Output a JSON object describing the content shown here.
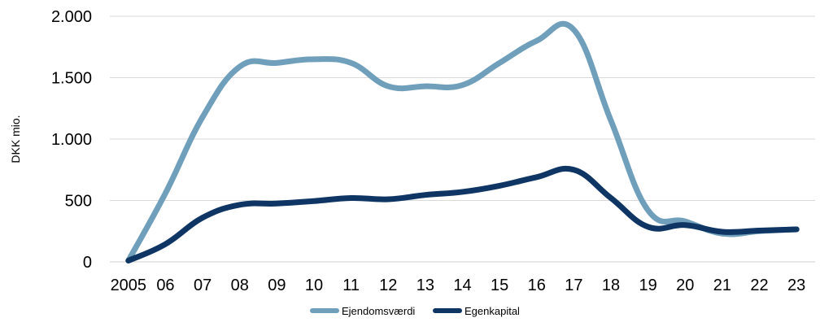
{
  "chart_data": {
    "type": "line",
    "ylabel": "DKK mio.",
    "xlabel": "",
    "categories": [
      "2005",
      "06",
      "07",
      "08",
      "09",
      "10",
      "11",
      "12",
      "13",
      "14",
      "15",
      "16",
      "17",
      "18",
      "19",
      "20",
      "21",
      "22",
      "23"
    ],
    "ylim": [
      0,
      2000
    ],
    "yticks": [
      {
        "value": 0,
        "label": "0"
      },
      {
        "value": 500,
        "label": "500"
      },
      {
        "value": 1000,
        "label": "1.000"
      },
      {
        "value": 1500,
        "label": "1.500"
      },
      {
        "value": 2000,
        "label": "2.000"
      }
    ],
    "grid": true,
    "legend_position": "bottom",
    "series": [
      {
        "name": "Ejendomsværdi",
        "color": "#6F9FBA",
        "values": [
          10,
          560,
          1180,
          1590,
          1620,
          1650,
          1620,
          1430,
          1430,
          1440,
          1620,
          1800,
          1890,
          1150,
          420,
          330,
          230,
          250,
          265
        ]
      },
      {
        "name": "Egenkapital",
        "color": "#0E3563",
        "values": [
          10,
          145,
          360,
          465,
          475,
          495,
          520,
          510,
          545,
          570,
          620,
          690,
          750,
          520,
          285,
          300,
          245,
          255,
          265
        ]
      }
    ]
  }
}
